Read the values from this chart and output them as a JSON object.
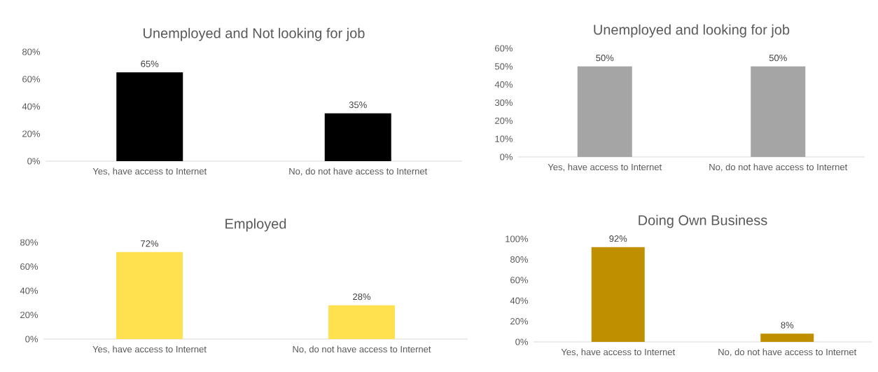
{
  "chart_data": [
    {
      "type": "bar",
      "title": "Unemployed and Not looking for job",
      "categories": [
        "Yes, have access to Internet",
        "No, do not have access to Internet"
      ],
      "values": [
        65,
        35
      ],
      "color": "#000000",
      "value_labels": [
        "65%",
        "35%"
      ],
      "ylim": [
        0,
        80
      ],
      "yticks": [
        {
          "value": 0,
          "label": "0%"
        },
        {
          "value": 20,
          "label": "20%"
        },
        {
          "value": 40,
          "label": "40%"
        },
        {
          "value": 60,
          "label": "60%"
        },
        {
          "value": 80,
          "label": "80%"
        }
      ]
    },
    {
      "type": "bar",
      "title": "Unemployed and looking for job",
      "categories": [
        "Yes, have access to Internet",
        "No, do not have access to Internet"
      ],
      "values": [
        50,
        50
      ],
      "color": "#a5a5a5",
      "value_labels": [
        "50%",
        "50%"
      ],
      "ylim": [
        0,
        60
      ],
      "yticks": [
        {
          "value": 0,
          "label": "0%"
        },
        {
          "value": 10,
          "label": "10%"
        },
        {
          "value": 20,
          "label": "20%"
        },
        {
          "value": 30,
          "label": "30%"
        },
        {
          "value": 40,
          "label": "40%"
        },
        {
          "value": 50,
          "label": "50%"
        },
        {
          "value": 60,
          "label": "60%"
        }
      ]
    },
    {
      "type": "bar",
      "title": "Employed",
      "categories": [
        "Yes, have access to Internet",
        "No, do not have access to Internet"
      ],
      "values": [
        72,
        28
      ],
      "color": "#ffe14f",
      "value_labels": [
        "72%",
        "28%"
      ],
      "ylim": [
        0,
        80
      ],
      "yticks": [
        {
          "value": 0,
          "label": "0%"
        },
        {
          "value": 20,
          "label": "20%"
        },
        {
          "value": 40,
          "label": "40%"
        },
        {
          "value": 60,
          "label": "60%"
        },
        {
          "value": 80,
          "label": "80%"
        }
      ]
    },
    {
      "type": "bar",
      "title": "Doing Own Business",
      "categories": [
        "Yes, have access to Internet",
        "No, do not have access to Internet"
      ],
      "values": [
        92,
        8
      ],
      "color": "#bf8f00",
      "value_labels": [
        "92%",
        "8%"
      ],
      "ylim": [
        0,
        100
      ],
      "yticks": [
        {
          "value": 0,
          "label": "0%"
        },
        {
          "value": 20,
          "label": "20%"
        },
        {
          "value": 40,
          "label": "40%"
        },
        {
          "value": 60,
          "label": "60%"
        },
        {
          "value": 80,
          "label": "80%"
        },
        {
          "value": 100,
          "label": "100%"
        }
      ]
    }
  ]
}
